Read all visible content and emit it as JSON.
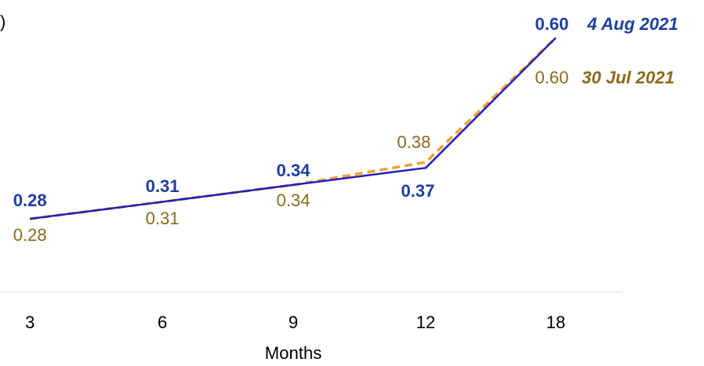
{
  "chart_data": {
    "type": "line",
    "title_fragment": ")",
    "xlabel": "Months",
    "categories": [
      "3",
      "6",
      "9",
      "12",
      "18"
    ],
    "ylim": [
      0.2,
      0.62
    ],
    "grid": false,
    "legend": "inline labels at line ends, top-right",
    "series": [
      {
        "name": "4 Aug 2021",
        "values": [
          0.28,
          0.31,
          0.34,
          0.37,
          0.6
        ],
        "labels": [
          "0.28",
          "0.31",
          "0.34",
          "0.37",
          "0.60"
        ],
        "color": "#1f1fbf",
        "label_color": "#1f3f9f",
        "style": "solid"
      },
      {
        "name": "30 Jul 2021",
        "values": [
          0.28,
          0.31,
          0.34,
          0.38,
          0.6
        ],
        "labels": [
          "0.28",
          "0.31",
          "0.34",
          "0.38",
          "0.60"
        ],
        "color": "#f5a030",
        "label_color": "#8a6a1a",
        "style": "dashed"
      }
    ]
  }
}
